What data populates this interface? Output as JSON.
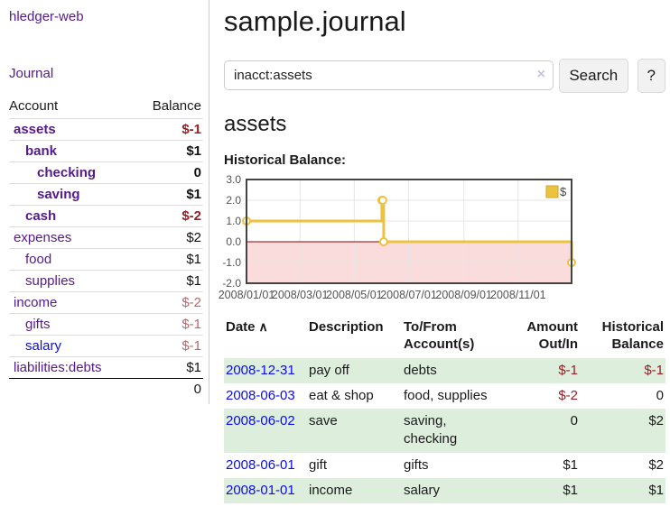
{
  "sidebar": {
    "app_title": "hledger-web",
    "journal_link": "Journal",
    "accounts_table": {
      "account_header": "Account",
      "balance_header": "Balance",
      "rows": [
        {
          "name": "assets",
          "balance": "$-1",
          "indent": 1,
          "bold": true,
          "tone": "neg-strong",
          "link": "purple"
        },
        {
          "name": "bank",
          "balance": "$1",
          "indent": 2,
          "bold": true,
          "tone": "pos",
          "link": "purple"
        },
        {
          "name": "checking",
          "balance": "0",
          "indent": 3,
          "bold": true,
          "tone": "pos",
          "link": "purple"
        },
        {
          "name": "saving",
          "balance": "$1",
          "indent": 3,
          "bold": true,
          "tone": "pos",
          "link": "purple"
        },
        {
          "name": "cash",
          "balance": "$-2",
          "indent": 2,
          "bold": true,
          "tone": "neg-strong",
          "link": "purple"
        },
        {
          "name": "expenses",
          "balance": "$2",
          "indent": 1,
          "bold": false,
          "tone": "pos",
          "link": "purple"
        },
        {
          "name": "food",
          "balance": "$1",
          "indent": 2,
          "bold": false,
          "tone": "pos",
          "link": "purple"
        },
        {
          "name": "supplies",
          "balance": "$1",
          "indent": 2,
          "bold": false,
          "tone": "pos",
          "link": "purple"
        },
        {
          "name": "income",
          "balance": "$-2",
          "indent": 1,
          "bold": false,
          "tone": "neg-soft",
          "link": "purple"
        },
        {
          "name": "gifts",
          "balance": "$-1",
          "indent": 2,
          "bold": false,
          "tone": "neg-soft",
          "link": "purple"
        },
        {
          "name": "salary",
          "balance": "$-1",
          "indent": 2,
          "bold": false,
          "tone": "neg-soft",
          "link": "blue"
        },
        {
          "name": "liabilities:debts",
          "balance": "$1",
          "indent": 1,
          "bold": false,
          "tone": "pos",
          "link": "purple"
        }
      ],
      "total": "0"
    }
  },
  "header": {
    "title": "sample.journal"
  },
  "search": {
    "value": "inacct:assets",
    "clear_icon": "×",
    "button_label": "Search",
    "help_label": "?"
  },
  "account_page": {
    "title": "assets",
    "chart_label": "Historical Balance:"
  },
  "chart_data": {
    "type": "line",
    "title": "Historical Balance",
    "step": true,
    "series": [
      {
        "name": "$",
        "x": [
          "2008-01-01",
          "2008-06-01",
          "2008-06-02",
          "2008-06-03",
          "2008-12-31"
        ],
        "values": [
          1,
          2,
          2,
          0,
          -1
        ]
      }
    ],
    "x_range": [
      "2008-01-01",
      "2008-12-31"
    ],
    "x_ticks": [
      "2008/01/01",
      "2008/03/01",
      "2008/05/01",
      "2008/07/01",
      "2008/09/01",
      "2008/11/01"
    ],
    "y_ticks": [
      3.0,
      2.0,
      1.0,
      0.0,
      -1.0,
      -2.0
    ],
    "ylim": [
      -2,
      3
    ],
    "grid": true,
    "legend_position": "top-right",
    "colors": {
      "line": "#edc240",
      "marker_fill": "#ffffff",
      "negative_fill": "#fbdcdc",
      "zero_line": "#8b0000",
      "grid": "#e6e6e6",
      "border": "#434343",
      "tick_text": "#545454",
      "legend_border": "#cfa52b",
      "legend_text": "#444444"
    }
  },
  "register": {
    "headers": {
      "date": "Date",
      "description": "Description",
      "accounts": "To/From Account(s)",
      "amount": "Amount Out/In",
      "balance": "Historical Balance"
    },
    "sort_icon": "∧",
    "rows": [
      {
        "date": "2008-12-31",
        "description": "pay off",
        "accounts_lines": [
          "debts"
        ],
        "amount": "$-1",
        "amount_neg": true,
        "balance": "$-1",
        "balance_neg": true,
        "stripe": true
      },
      {
        "date": "2008-06-03",
        "description": "eat & shop",
        "accounts_lines": [
          "food, supplies"
        ],
        "amount": "$-2",
        "amount_neg": true,
        "balance": "0",
        "balance_neg": false,
        "stripe": false
      },
      {
        "date": "2008-06-02",
        "description": "save",
        "accounts_lines": [
          "saving,",
          "checking"
        ],
        "amount": "0",
        "amount_neg": false,
        "balance": "$2",
        "balance_neg": false,
        "stripe": true
      },
      {
        "date": "2008-06-01",
        "description": "gift",
        "accounts_lines": [
          "gifts"
        ],
        "amount": "$1",
        "amount_neg": false,
        "balance": "$2",
        "balance_neg": false,
        "stripe": false
      },
      {
        "date": "2008-01-01",
        "description": "income",
        "accounts_lines": [
          "salary"
        ],
        "amount": "$1",
        "amount_neg": false,
        "balance": "$1",
        "balance_neg": false,
        "stripe": true
      }
    ]
  }
}
